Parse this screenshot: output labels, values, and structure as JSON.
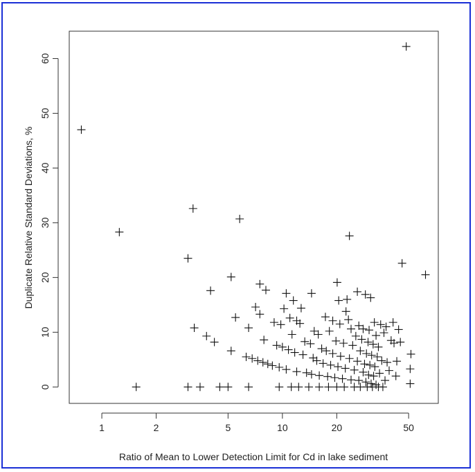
{
  "frame": {
    "border_color": "#1a2fd6"
  },
  "chart_data": {
    "type": "scatter",
    "title": "",
    "xlabel": "Ratio of Mean to Lower Detection Limit for Cd in lake sediment",
    "ylabel": "Duplicate Relative Standard Deviations, %",
    "x_scale": "log",
    "xlim": [
      0.66,
      73
    ],
    "ylim": [
      -3,
      65
    ],
    "x_ticks": [
      1,
      2,
      5,
      10,
      20,
      50
    ],
    "x_tick_labels": [
      "1",
      "2",
      "5",
      "10",
      "20",
      "50"
    ],
    "y_ticks": [
      0,
      10,
      20,
      30,
      40,
      50,
      60
    ],
    "y_tick_labels": [
      "0",
      "10",
      "20",
      "30",
      "40",
      "50",
      "60"
    ],
    "grid": false,
    "legend": "none",
    "marker": "+",
    "marker_color": "#111111",
    "points": [
      [
        0.77,
        47.0
      ],
      [
        1.25,
        28.3
      ],
      [
        1.55,
        0.0
      ],
      [
        3.0,
        23.5
      ],
      [
        3.0,
        0.0
      ],
      [
        3.2,
        32.6
      ],
      [
        3.25,
        10.8
      ],
      [
        3.5,
        0.0
      ],
      [
        3.8,
        9.3
      ],
      [
        4.0,
        17.6
      ],
      [
        4.2,
        8.2
      ],
      [
        4.5,
        0.0
      ],
      [
        5.0,
        0.0
      ],
      [
        5.2,
        20.1
      ],
      [
        5.2,
        6.6
      ],
      [
        5.5,
        12.7
      ],
      [
        5.8,
        30.7
      ],
      [
        6.3,
        5.5
      ],
      [
        6.5,
        0.0
      ],
      [
        6.5,
        10.8
      ],
      [
        6.8,
        5.2
      ],
      [
        7.1,
        14.6
      ],
      [
        7.3,
        4.8
      ],
      [
        7.5,
        18.8
      ],
      [
        7.5,
        13.3
      ],
      [
        7.8,
        4.5
      ],
      [
        7.9,
        8.6
      ],
      [
        8.1,
        17.7
      ],
      [
        8.3,
        4.2
      ],
      [
        8.8,
        3.9
      ],
      [
        9.0,
        11.8
      ],
      [
        9.3,
        7.6
      ],
      [
        9.6,
        3.6
      ],
      [
        9.6,
        0.0
      ],
      [
        9.8,
        11.4
      ],
      [
        10.0,
        7.3
      ],
      [
        10.2,
        14.3
      ],
      [
        10.5,
        17.1
      ],
      [
        10.5,
        3.2
      ],
      [
        10.8,
        6.8
      ],
      [
        11.0,
        12.6
      ],
      [
        11.2,
        0.0
      ],
      [
        11.3,
        9.6
      ],
      [
        11.5,
        15.8
      ],
      [
        11.7,
        6.3
      ],
      [
        12.0,
        12.1
      ],
      [
        12.0,
        2.8
      ],
      [
        12.3,
        0.0
      ],
      [
        12.5,
        11.6
      ],
      [
        12.7,
        14.4
      ],
      [
        13.0,
        5.9
      ],
      [
        13.3,
        8.3
      ],
      [
        13.6,
        2.6
      ],
      [
        14.0,
        0.0
      ],
      [
        14.3,
        7.9
      ],
      [
        14.5,
        17.1
      ],
      [
        14.5,
        2.3
      ],
      [
        14.8,
        5.3
      ],
      [
        15.0,
        10.2
      ],
      [
        15.5,
        4.8
      ],
      [
        15.8,
        9.6
      ],
      [
        16.0,
        2.1
      ],
      [
        16.0,
        0.0
      ],
      [
        16.5,
        7.0
      ],
      [
        16.8,
        4.3
      ],
      [
        17.3,
        12.8
      ],
      [
        17.5,
        6.6
      ],
      [
        17.8,
        1.9
      ],
      [
        18.0,
        0.0
      ],
      [
        18.2,
        10.2
      ],
      [
        18.5,
        4.0
      ],
      [
        19.0,
        12.1
      ],
      [
        19.0,
        6.1
      ],
      [
        19.5,
        1.7
      ],
      [
        19.8,
        8.4
      ],
      [
        20.0,
        0.0
      ],
      [
        20.1,
        19.1
      ],
      [
        20.3,
        3.7
      ],
      [
        20.5,
        15.8
      ],
      [
        20.8,
        11.5
      ],
      [
        21.0,
        5.6
      ],
      [
        21.5,
        1.5
      ],
      [
        21.8,
        8.0
      ],
      [
        22.0,
        0.0
      ],
      [
        22.3,
        3.4
      ],
      [
        22.5,
        13.8
      ],
      [
        22.8,
        16.0
      ],
      [
        23.2,
        12.3
      ],
      [
        23.5,
        5.2
      ],
      [
        23.5,
        27.6
      ],
      [
        24.0,
        10.6
      ],
      [
        24.0,
        1.3
      ],
      [
        24.5,
        7.6
      ],
      [
        25.0,
        0.0
      ],
      [
        25.0,
        3.1
      ],
      [
        25.5,
        9.3
      ],
      [
        26.0,
        17.4
      ],
      [
        26.0,
        4.7
      ],
      [
        26.5,
        11.2
      ],
      [
        26.5,
        1.2
      ],
      [
        27.0,
        6.6
      ],
      [
        27.0,
        0.0
      ],
      [
        27.5,
        8.7
      ],
      [
        28.0,
        2.7
      ],
      [
        28.0,
        10.6
      ],
      [
        28.5,
        4.2
      ],
      [
        28.8,
        16.9
      ],
      [
        29.0,
        0.9
      ],
      [
        29.2,
        6.1
      ],
      [
        29.5,
        0.0
      ],
      [
        29.8,
        8.2
      ],
      [
        30.0,
        2.2
      ],
      [
        30.2,
        10.4
      ],
      [
        30.5,
        4.0
      ],
      [
        30.8,
        16.3
      ],
      [
        31.0,
        0.6
      ],
      [
        31.2,
        5.8
      ],
      [
        31.5,
        0.0
      ],
      [
        31.8,
        7.8
      ],
      [
        32.0,
        2.0
      ],
      [
        32.3,
        11.8
      ],
      [
        32.5,
        3.7
      ],
      [
        33.0,
        9.4
      ],
      [
        33.0,
        0.4
      ],
      [
        33.5,
        5.5
      ],
      [
        34.0,
        0.0
      ],
      [
        34.0,
        7.3
      ],
      [
        34.5,
        2.5
      ],
      [
        35.0,
        11.4
      ],
      [
        35.5,
        4.8
      ],
      [
        36.0,
        0.0
      ],
      [
        36.5,
        9.9
      ],
      [
        37.0,
        1.2
      ],
      [
        37.5,
        11.0
      ],
      [
        38.0,
        4.5
      ],
      [
        39.0,
        3.0
      ],
      [
        40.0,
        8.5
      ],
      [
        41.0,
        11.8
      ],
      [
        41.5,
        8.0
      ],
      [
        42.5,
        2.0
      ],
      [
        43.0,
        4.7
      ],
      [
        44.0,
        10.5
      ],
      [
        45.0,
        8.2
      ],
      [
        46.0,
        22.6
      ],
      [
        48.5,
        62.2
      ],
      [
        51.0,
        3.3
      ],
      [
        51.5,
        6.0
      ],
      [
        51.0,
        0.6
      ],
      [
        62.0,
        20.5
      ]
    ]
  }
}
